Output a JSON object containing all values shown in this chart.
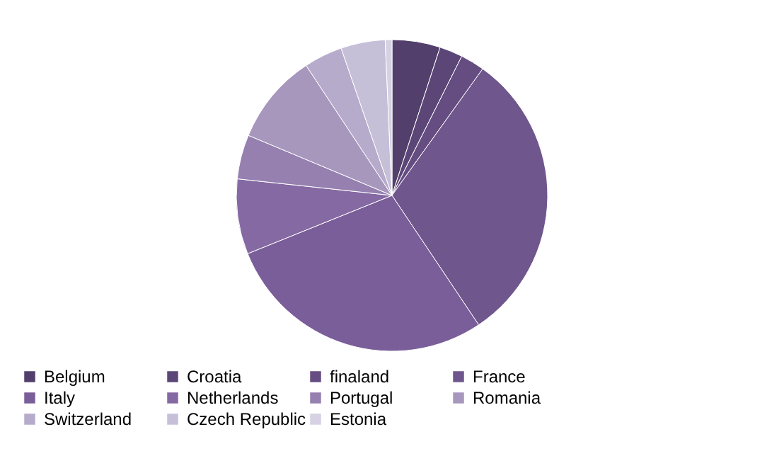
{
  "chart_data": {
    "type": "pie",
    "categories": [
      "Belgium",
      "Croatia",
      "finaland",
      "France",
      "Italy",
      "Netherlands",
      "Portugal",
      "Romania",
      "Switzerland",
      "Czech Republic",
      "Estonia"
    ],
    "values": [
      5,
      2.4,
      2.5,
      30.7,
      28.3,
      7.8,
      4.6,
      9.4,
      4,
      4.6,
      0.7
    ],
    "colors": [
      "#523f6b",
      "#5b4677",
      "#654d82",
      "#6f568d",
      "#7a5e99",
      "#8569a3",
      "#9580b0",
      "#a797bd",
      "#b7abcb",
      "#c6bfd8",
      "#d6d1e3"
    ],
    "legend": "bottom"
  }
}
